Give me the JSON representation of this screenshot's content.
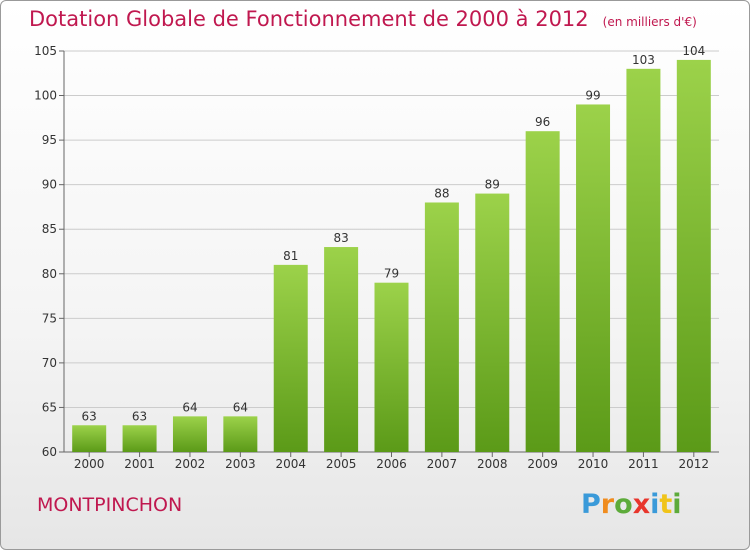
{
  "header": {
    "title": "Dotation Globale de Fonctionnement de 2000 à 2012",
    "unit": "(en milliers d'€)"
  },
  "commune": "MONTPINCHON",
  "logo": {
    "text": "Proxiti",
    "colors": [
      "#3a9ad9",
      "#f08c1e",
      "#5dab3a",
      "#e8352c",
      "#3a9ad9",
      "#f0c419",
      "#5dab3a"
    ]
  },
  "colors": {
    "bar_top": "#9cd24a",
    "bar_bottom": "#5b9a18",
    "title": "#c0184f",
    "grid": "#cccccc",
    "axis": "#666666"
  },
  "chart_data": {
    "type": "bar",
    "title": "Dotation Globale de Fonctionnement de 2000 à 2012",
    "subtitle": "(en milliers d'€)",
    "categories": [
      "2000",
      "2001",
      "2002",
      "2003",
      "2004",
      "2005",
      "2006",
      "2007",
      "2008",
      "2009",
      "2010",
      "2011",
      "2012"
    ],
    "values": [
      63,
      63,
      64,
      64,
      81,
      83,
      79,
      88,
      89,
      96,
      99,
      103,
      104
    ],
    "ylim": [
      60,
      105
    ],
    "yticks": [
      60,
      65,
      70,
      75,
      80,
      85,
      90,
      95,
      100,
      105
    ],
    "grid": true,
    "data_labels": true
  }
}
